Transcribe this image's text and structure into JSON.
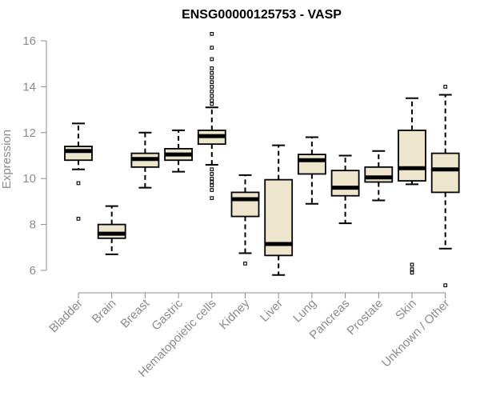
{
  "chart_data": {
    "type": "boxplot",
    "title": "ENSG00000125753 - VASP",
    "xlabel": "",
    "ylabel": "Expression",
    "ylim": [
      5.2,
      16.4
    ],
    "yticks": [
      6,
      8,
      10,
      12,
      14,
      16
    ],
    "grid": false,
    "legend": "none",
    "box_fill": "#ede6cd",
    "categories": [
      "Bladder",
      "Brain",
      "Breast",
      "Gastric",
      "Hematopoietic cells",
      "Kidney",
      "Liver",
      "Lung",
      "Pancreas",
      "Prostate",
      "Skin",
      "Unknown / Other"
    ],
    "boxes": [
      {
        "category": "Bladder",
        "whisker_low": 10.4,
        "q1": 10.8,
        "median": 11.2,
        "q3": 11.4,
        "whisker_high": 12.4,
        "outliers": [
          9.8,
          8.25
        ]
      },
      {
        "category": "Brain",
        "whisker_low": 6.7,
        "q1": 7.4,
        "median": 7.6,
        "q3": 8.0,
        "whisker_high": 8.8,
        "outliers": []
      },
      {
        "category": "Breast",
        "whisker_low": 9.6,
        "q1": 10.5,
        "median": 10.85,
        "q3": 11.1,
        "whisker_high": 12.0,
        "outliers": []
      },
      {
        "category": "Gastric",
        "whisker_low": 10.3,
        "q1": 10.8,
        "median": 11.05,
        "q3": 11.3,
        "whisker_high": 12.1,
        "outliers": []
      },
      {
        "category": "Hematopoietic cells",
        "whisker_low": 10.6,
        "q1": 11.5,
        "median": 11.85,
        "q3": 12.1,
        "whisker_high": 13.1,
        "outliers": [
          16.3,
          15.7,
          15.2,
          14.8,
          14.6,
          14.4,
          14.2,
          14.0,
          13.8,
          13.6,
          13.4,
          13.25,
          10.4,
          10.2,
          10.0,
          9.85,
          9.7,
          9.5,
          9.15
        ]
      },
      {
        "category": "Kidney",
        "whisker_low": 6.75,
        "q1": 8.35,
        "median": 9.1,
        "q3": 9.4,
        "whisker_high": 10.15,
        "outliers": [
          6.3
        ]
      },
      {
        "category": "Liver",
        "whisker_low": 5.8,
        "q1": 6.65,
        "median": 7.15,
        "q3": 9.95,
        "whisker_high": 11.45,
        "outliers": []
      },
      {
        "category": "Lung",
        "whisker_low": 8.9,
        "q1": 10.2,
        "median": 10.8,
        "q3": 11.05,
        "whisker_high": 11.8,
        "outliers": []
      },
      {
        "category": "Pancreas",
        "whisker_low": 8.05,
        "q1": 9.25,
        "median": 9.6,
        "q3": 10.35,
        "whisker_high": 11.0,
        "outliers": []
      },
      {
        "category": "Prostate",
        "whisker_low": 9.05,
        "q1": 9.85,
        "median": 10.05,
        "q3": 10.5,
        "whisker_high": 11.2,
        "outliers": []
      },
      {
        "category": "Skin",
        "whisker_low": 9.75,
        "q1": 9.9,
        "median": 10.45,
        "q3": 12.1,
        "whisker_high": 13.5,
        "outliers": [
          6.25,
          6.05,
          5.9
        ]
      },
      {
        "category": "Unknown / Other",
        "whisker_low": 6.95,
        "q1": 9.4,
        "median": 10.4,
        "q3": 11.1,
        "whisker_high": 13.65,
        "outliers": [
          14.0,
          5.35
        ]
      }
    ]
  }
}
